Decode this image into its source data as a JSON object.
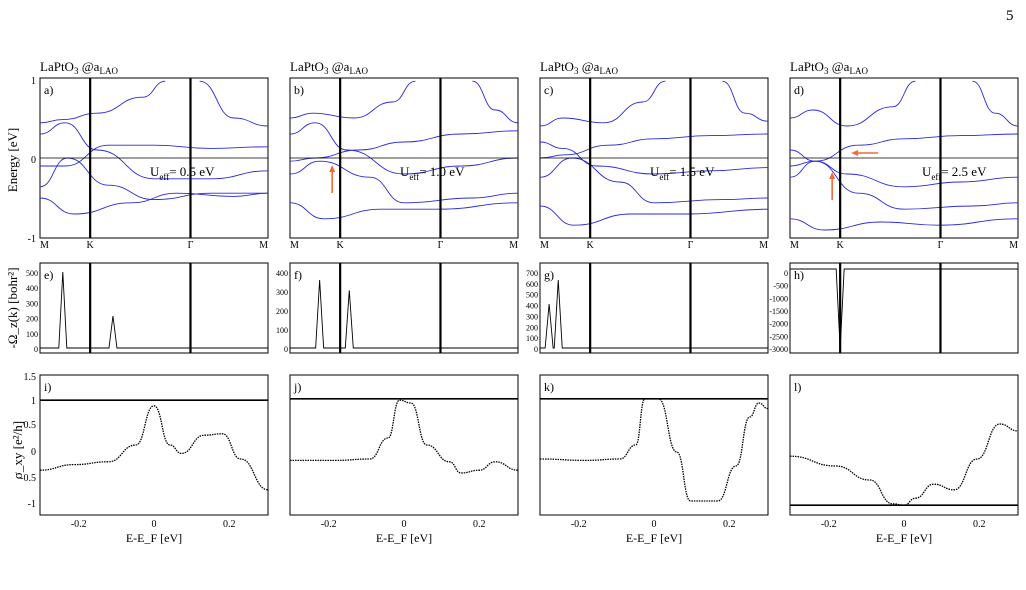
{
  "page_number": "5",
  "band_axis": {
    "ylabel": "Energy [eV]",
    "yticks": [
      "1",
      "0",
      "-1"
    ],
    "kpoints": [
      "M",
      "K",
      "Γ",
      "M"
    ]
  },
  "berry_axis": {
    "ylabel": "-Ω_z(k) [bohr²]"
  },
  "sigma_axis": {
    "ylabel": "σ_xy [e²/h]",
    "xlabel": "E-E_F [eV]",
    "yticks": [
      "1.5",
      "1",
      "0.5",
      "0",
      "-0.5",
      "-1"
    ],
    "xticks": [
      "-0.2",
      "0",
      "0.2"
    ]
  },
  "panels": [
    {
      "title_main": "LaPtO",
      "title_sub": "3",
      "title_at": " @a",
      "title_sub2": "LAO",
      "band_label": "a)",
      "u_label": "U",
      "u_sub": "eff",
      "u_value": "= 0.5 eV",
      "berry_label": "e)",
      "berry_ticks": [
        "500",
        "400",
        "300",
        "200",
        "100",
        "0"
      ],
      "sigma_label": "i)"
    },
    {
      "title_main": "LaPtO",
      "title_sub": "3",
      "title_at": " @a",
      "title_sub2": "LAO",
      "band_label": "b)",
      "u_label": "U",
      "u_sub": "eff",
      "u_value": "= 1.0 eV",
      "berry_label": "f)",
      "berry_ticks": [
        "400",
        "300",
        "200",
        "100",
        "0"
      ],
      "sigma_label": "j)"
    },
    {
      "title_main": "LaPtO",
      "title_sub": "3",
      "title_at": " @a",
      "title_sub2": "LAO",
      "band_label": "c)",
      "u_label": "U",
      "u_sub": "eff",
      "u_value": "= 1.5 eV",
      "berry_label": "g)",
      "berry_ticks": [
        "700",
        "600",
        "500",
        "400",
        "300",
        "200",
        "100",
        "0"
      ],
      "sigma_label": "k)"
    },
    {
      "title_main": "LaPtO",
      "title_sub": "3",
      "title_at": " @a",
      "title_sub2": "LAO",
      "band_label": "d)",
      "u_label": "U",
      "u_sub": "eff",
      "u_value": "= 2.5 eV",
      "berry_label": "h)",
      "berry_ticks": [
        "0",
        "-500",
        "-1000",
        "-1500",
        "-2000",
        "-2500",
        "-3000"
      ],
      "sigma_label": "l)"
    }
  ],
  "colors": {
    "bands": "#2a2ad8",
    "arrow": "#f26a3a",
    "curve": "#000000"
  }
}
